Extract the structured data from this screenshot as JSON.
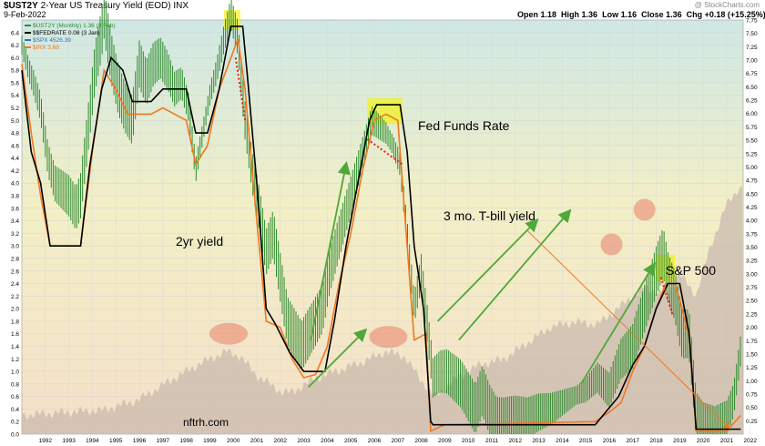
{
  "header": {
    "symbol": "$UST2Y",
    "description": "2-Year US Treasury Yield (EOD)",
    "exchange": "INX",
    "date": "9-Feb-2022",
    "watermark": "@ StockCharts.com",
    "quote": {
      "open": "Open 1.18",
      "high": "High 1.36",
      "low": "Low 1.16",
      "close": "Close 1.36",
      "chg": "Chg +0.18 (+15.25%)",
      "arrow": "▲"
    }
  },
  "legend": [
    {
      "label": "$UST2Y (Monthly) 1.36 (9 Feb)",
      "color": "#2e8b2e"
    },
    {
      "label": "$$FEDRATE 0.08 (3 Jan)",
      "color": "#000000"
    },
    {
      "label": "$SPX 4526.39",
      "color": "#3a6fb0"
    },
    {
      "label": "$IRX 3.68",
      "color": "#f07820"
    }
  ],
  "annotations": {
    "two_yr": "2yr yield",
    "fed_funds": "Fed Funds Rate",
    "tbill": "3 mo. T-bill yield",
    "spx": "S&P 500",
    "credit": "nftrh.com"
  },
  "colors": {
    "yield_green": "#2e8b2e",
    "fed_black": "#000000",
    "tbill_orange": "#f07820",
    "spx_fill": "#c9b9ad",
    "arrow_green": "#4fa83a",
    "dotted_red": "#e8201a",
    "highlight_yellow": "#f2f20a",
    "circle_red": "#e8806a",
    "spx_label": "#1010e0"
  },
  "chart_data": {
    "type": "line",
    "title": "$UST2Y 2-Year US Treasury Yield (EOD) INX",
    "left_axis": {
      "range": [
        0,
        6.6
      ],
      "ticks": [
        "0.0",
        "0.2",
        "0.4",
        "0.6",
        "0.8",
        "1.0",
        "1.2",
        "1.4",
        "1.6",
        "1.8",
        "2.0",
        "2.2",
        "2.4",
        "2.6",
        "2.8",
        "3.0",
        "3.2",
        "3.4",
        "3.6",
        "3.8",
        "4.0",
        "4.2",
        "4.4",
        "4.6",
        "4.8",
        "5.0",
        "5.2",
        "5.4",
        "5.6",
        "5.8",
        "6.0",
        "6.2",
        "6.4"
      ]
    },
    "right_axis": {
      "range": [
        0,
        7.75
      ],
      "ticks": [
        "0.25",
        "0.50",
        "0.75",
        "1.00",
        "1.25",
        "1.50",
        "1.75",
        "2.00",
        "2.25",
        "2.50",
        "2.75",
        "3.00",
        "3.25",
        "3.50",
        "3.75",
        "4.00",
        "4.25",
        "4.50",
        "4.75",
        "5.00",
        "5.25",
        "5.50",
        "5.75",
        "6.00",
        "6.25",
        "6.50",
        "6.75",
        "7.00",
        "7.25",
        "7.50",
        "7.75"
      ]
    },
    "x_axis": {
      "range": [
        1991.5,
        2022.2
      ],
      "ticks": [
        "1992",
        "1993",
        "1994",
        "1995",
        "1996",
        "1997",
        "1998",
        "1999",
        "2000",
        "2001",
        "2002",
        "2003",
        "2004",
        "2005",
        "2006",
        "2007",
        "2008",
        "2009",
        "2010",
        "2011",
        "2012",
        "2013",
        "2014",
        "2015",
        "2016",
        "2017",
        "2018",
        "2019",
        "2020",
        "2021",
        "2022"
      ]
    },
    "series": [
      {
        "name": "$UST2Y (Monthly) 1.36 (9 Feb)",
        "axis": "left",
        "points": [
          [
            1991.5,
            6.2
          ],
          [
            1991.8,
            5.8
          ],
          [
            1992.0,
            5.6
          ],
          [
            1992.3,
            5.2
          ],
          [
            1992.6,
            4.4
          ],
          [
            1992.9,
            4.0
          ],
          [
            1993.2,
            3.9
          ],
          [
            1993.5,
            3.8
          ],
          [
            1993.8,
            3.6
          ],
          [
            1994.0,
            3.8
          ],
          [
            1994.3,
            4.8
          ],
          [
            1994.6,
            5.8
          ],
          [
            1994.9,
            6.4
          ],
          [
            1995.0,
            6.7
          ],
          [
            1995.3,
            6.0
          ],
          [
            1995.6,
            5.5
          ],
          [
            1995.9,
            5.2
          ],
          [
            1996.2,
            5.0
          ],
          [
            1996.5,
            5.9
          ],
          [
            1996.8,
            5.6
          ],
          [
            1997.1,
            5.9
          ],
          [
            1997.4,
            6.0
          ],
          [
            1997.7,
            5.8
          ],
          [
            1998.0,
            5.5
          ],
          [
            1998.3,
            5.6
          ],
          [
            1998.6,
            5.2
          ],
          [
            1998.9,
            4.2
          ],
          [
            1999.2,
            4.8
          ],
          [
            1999.5,
            5.4
          ],
          [
            1999.8,
            5.8
          ],
          [
            2000.1,
            6.3
          ],
          [
            2000.4,
            6.7
          ],
          [
            2000.7,
            6.3
          ],
          [
            2001.0,
            5.0
          ],
          [
            2001.3,
            4.2
          ],
          [
            2001.6,
            3.6
          ],
          [
            2001.9,
            2.9
          ],
          [
            2002.2,
            3.2
          ],
          [
            2002.5,
            2.5
          ],
          [
            2002.8,
            1.8
          ],
          [
            2003.1,
            1.6
          ],
          [
            2003.4,
            1.4
          ],
          [
            2003.7,
            1.6
          ],
          [
            2004.0,
            1.8
          ],
          [
            2004.3,
            2.0
          ],
          [
            2004.6,
            2.6
          ],
          [
            2004.9,
            3.0
          ],
          [
            2005.2,
            3.4
          ],
          [
            2005.5,
            3.8
          ],
          [
            2005.8,
            4.2
          ],
          [
            2006.1,
            4.6
          ],
          [
            2006.4,
            5.0
          ],
          [
            2006.7,
            4.9
          ],
          [
            2007.0,
            4.8
          ],
          [
            2007.3,
            4.6
          ],
          [
            2007.6,
            4.3
          ],
          [
            2007.9,
            3.2
          ],
          [
            2008.2,
            2.0
          ],
          [
            2008.5,
            2.6
          ],
          [
            2008.8,
            1.6
          ],
          [
            2009.0,
            0.9
          ],
          [
            2009.3,
            1.0
          ],
          [
            2009.6,
            1.0
          ],
          [
            2009.9,
            0.9
          ],
          [
            2010.2,
            0.8
          ],
          [
            2010.5,
            0.6
          ],
          [
            2010.8,
            0.4
          ],
          [
            2011.1,
            0.7
          ],
          [
            2011.4,
            0.4
          ],
          [
            2011.7,
            0.2
          ],
          [
            2012.0,
            0.2
          ],
          [
            2012.5,
            0.25
          ],
          [
            2013.0,
            0.25
          ],
          [
            2013.5,
            0.35
          ],
          [
            2014.0,
            0.4
          ],
          [
            2014.5,
            0.5
          ],
          [
            2015.0,
            0.6
          ],
          [
            2015.5,
            0.7
          ],
          [
            2016.0,
            0.9
          ],
          [
            2016.5,
            0.7
          ],
          [
            2017.0,
            1.2
          ],
          [
            2017.5,
            1.4
          ],
          [
            2018.0,
            2.0
          ],
          [
            2018.5,
            2.6
          ],
          [
            2018.8,
            2.9
          ],
          [
            2019.0,
            2.5
          ],
          [
            2019.3,
            2.2
          ],
          [
            2019.6,
            1.6
          ],
          [
            2019.9,
            1.6
          ],
          [
            2020.2,
            0.3
          ],
          [
            2020.5,
            0.15
          ],
          [
            2021.0,
            0.12
          ],
          [
            2021.5,
            0.25
          ],
          [
            2021.8,
            0.55
          ],
          [
            2022.0,
            1.1
          ],
          [
            2022.1,
            1.36
          ]
        ]
      },
      {
        "name": "$$FEDRATE 0.08 (3 Jan)",
        "axis": "left",
        "points": [
          [
            1991.5,
            5.8
          ],
          [
            1991.9,
            4.5
          ],
          [
            1992.3,
            4.0
          ],
          [
            1992.7,
            3.0
          ],
          [
            1993.0,
            3.0
          ],
          [
            1994.0,
            3.0
          ],
          [
            1994.4,
            4.3
          ],
          [
            1994.9,
            5.5
          ],
          [
            1995.3,
            6.0
          ],
          [
            1995.8,
            5.8
          ],
          [
            1996.2,
            5.3
          ],
          [
            1997.0,
            5.3
          ],
          [
            1997.5,
            5.5
          ],
          [
            1998.5,
            5.5
          ],
          [
            1998.9,
            4.8
          ],
          [
            1999.4,
            4.8
          ],
          [
            1999.9,
            5.5
          ],
          [
            2000.4,
            6.5
          ],
          [
            2000.9,
            6.5
          ],
          [
            2001.1,
            5.7
          ],
          [
            2001.5,
            4.0
          ],
          [
            2001.9,
            2.0
          ],
          [
            2002.3,
            1.75
          ],
          [
            2002.9,
            1.3
          ],
          [
            2003.5,
            1.0
          ],
          [
            2004.4,
            1.0
          ],
          [
            2004.8,
            1.8
          ],
          [
            2005.3,
            3.0
          ],
          [
            2005.8,
            4.0
          ],
          [
            2006.3,
            5.0
          ],
          [
            2006.6,
            5.25
          ],
          [
            2007.6,
            5.25
          ],
          [
            2007.9,
            4.5
          ],
          [
            2008.2,
            3.0
          ],
          [
            2008.6,
            2.0
          ],
          [
            2008.9,
            0.2
          ],
          [
            2009.0,
            0.15
          ],
          [
            2015.9,
            0.15
          ],
          [
            2016.9,
            0.6
          ],
          [
            2017.5,
            1.1
          ],
          [
            2018.0,
            1.4
          ],
          [
            2018.5,
            2.0
          ],
          [
            2019.0,
            2.4
          ],
          [
            2019.5,
            2.4
          ],
          [
            2019.9,
            1.6
          ],
          [
            2020.2,
            0.08
          ],
          [
            2022.1,
            0.08
          ]
        ]
      },
      {
        "name": "$IRX 3.68",
        "axis": "left",
        "points": [
          [
            1991.5,
            5.9
          ],
          [
            1991.9,
            4.8
          ],
          [
            1992.3,
            3.8
          ],
          [
            1992.7,
            3.0
          ],
          [
            1993.0,
            3.0
          ],
          [
            1994.0,
            3.0
          ],
          [
            1994.5,
            4.5
          ],
          [
            1995.0,
            5.8
          ],
          [
            1995.5,
            5.5
          ],
          [
            1996.0,
            5.1
          ],
          [
            1996.5,
            5.1
          ],
          [
            1997.0,
            5.1
          ],
          [
            1997.5,
            5.2
          ],
          [
            1998.5,
            5.0
          ],
          [
            1998.9,
            4.3
          ],
          [
            1999.4,
            4.6
          ],
          [
            1999.9,
            5.5
          ],
          [
            2000.4,
            6.0
          ],
          [
            2000.7,
            6.3
          ],
          [
            2001.0,
            5.5
          ],
          [
            2001.4,
            3.8
          ],
          [
            2001.9,
            1.8
          ],
          [
            2002.5,
            1.7
          ],
          [
            2003.0,
            1.2
          ],
          [
            2003.5,
            0.9
          ],
          [
            2004.0,
            0.95
          ],
          [
            2004.5,
            1.4
          ],
          [
            2005.0,
            2.4
          ],
          [
            2005.5,
            3.2
          ],
          [
            2006.0,
            4.2
          ],
          [
            2006.5,
            5.0
          ],
          [
            2007.0,
            5.1
          ],
          [
            2007.5,
            5.0
          ],
          [
            2007.8,
            3.5
          ],
          [
            2008.2,
            1.5
          ],
          [
            2008.7,
            1.6
          ],
          [
            2008.9,
            0.05
          ],
          [
            2009.5,
            0.15
          ],
          [
            2015.9,
            0.2
          ],
          [
            2016.5,
            0.35
          ],
          [
            2017.0,
            0.5
          ],
          [
            2017.5,
            1.0
          ],
          [
            2018.0,
            1.4
          ],
          [
            2018.5,
            2.0
          ],
          [
            2018.9,
            2.4
          ],
          [
            2019.3,
            2.4
          ],
          [
            2019.6,
            2.0
          ],
          [
            2019.9,
            1.55
          ],
          [
            2020.2,
            0.05
          ],
          [
            2021.5,
            0.05
          ],
          [
            2022.1,
            0.3
          ]
        ]
      },
      {
        "name": "$SPX 4526.39",
        "axis": "right",
        "points": [
          [
            1991.5,
            0.35
          ],
          [
            1993,
            0.4
          ],
          [
            1995,
            0.45
          ],
          [
            1996.5,
            0.65
          ],
          [
            1998,
            1.05
          ],
          [
            1999,
            1.3
          ],
          [
            2000.2,
            1.55
          ],
          [
            2000.8,
            1.45
          ],
          [
            2001.5,
            1.1
          ],
          [
            2002.5,
            0.8
          ],
          [
            2003.0,
            0.78
          ],
          [
            2004.0,
            1.05
          ],
          [
            2005.0,
            1.2
          ],
          [
            2006.0,
            1.35
          ],
          [
            2007.0,
            1.55
          ],
          [
            2007.8,
            1.45
          ],
          [
            2008.5,
            1.0
          ],
          [
            2009.1,
            0.7
          ],
          [
            2010.0,
            1.05
          ],
          [
            2011.0,
            1.3
          ],
          [
            2012.0,
            1.4
          ],
          [
            2013.0,
            1.7
          ],
          [
            2014.0,
            2.0
          ],
          [
            2015.0,
            2.1
          ],
          [
            2016.0,
            2.05
          ],
          [
            2017.0,
            2.4
          ],
          [
            2018.0,
            2.75
          ],
          [
            2018.9,
            2.6
          ],
          [
            2019.5,
            3.0
          ],
          [
            2020.2,
            2.6
          ],
          [
            2020.8,
            3.5
          ],
          [
            2021.5,
            4.3
          ],
          [
            2022.0,
            4.6
          ]
        ]
      }
    ]
  }
}
